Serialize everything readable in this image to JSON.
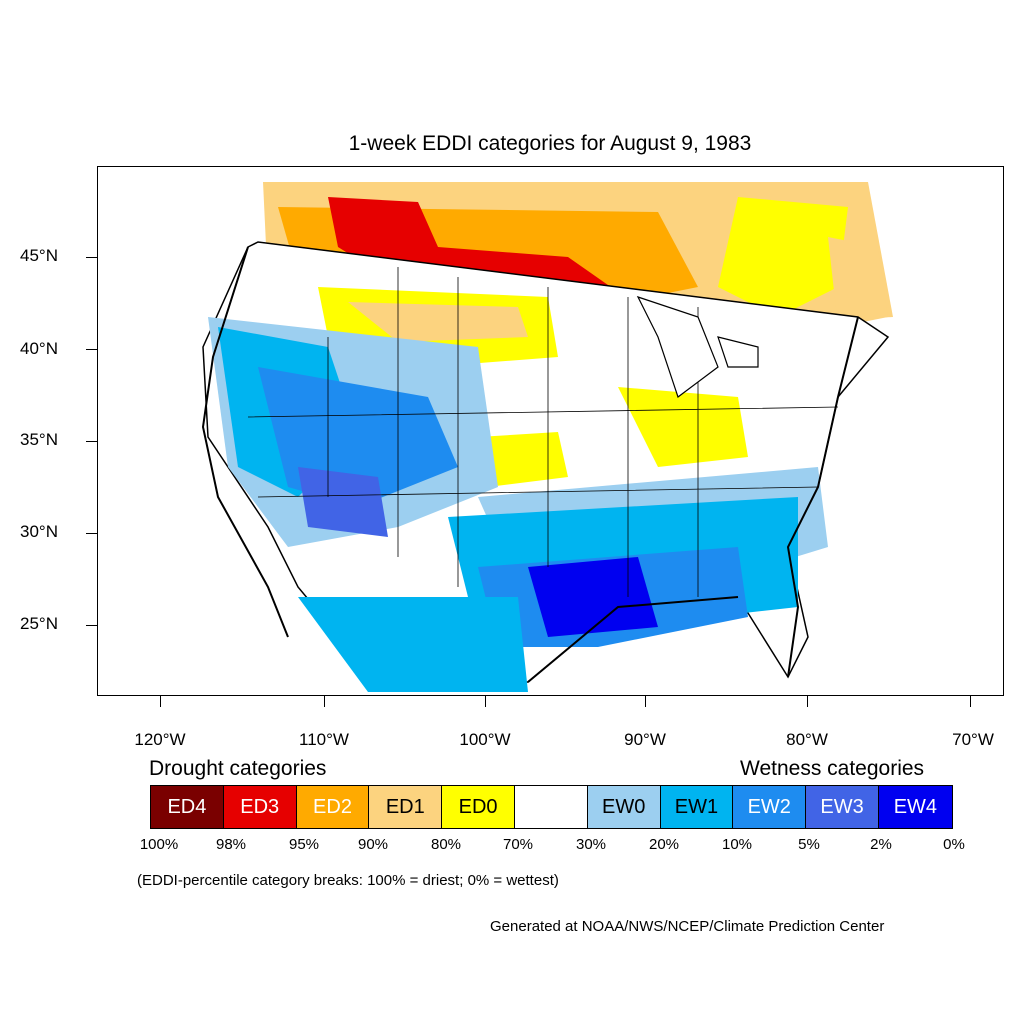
{
  "title": "1-week EDDI categories for August 9, 1983",
  "axes": {
    "lat_labels": [
      "45°N",
      "40°N",
      "35°N",
      "30°N",
      "25°N"
    ],
    "lon_labels": [
      "120°W",
      "110°W",
      "100°W",
      "90°W",
      "80°W",
      "70°W"
    ]
  },
  "legend": {
    "drought_heading": "Drought categories",
    "wetness_heading": "Wetness categories",
    "categories": [
      {
        "label": "ED4",
        "color": "#7a0000",
        "text_color": "#ffffff"
      },
      {
        "label": "ED3",
        "color": "#e60000",
        "text_color": "#ffffff"
      },
      {
        "label": "ED2",
        "color": "#ffaa00",
        "text_color": "#ffffff"
      },
      {
        "label": "ED1",
        "color": "#fcd37f",
        "text_color": "#000000"
      },
      {
        "label": "ED0",
        "color": "#ffff00",
        "text_color": "#000000"
      },
      {
        "label": "",
        "color": "#ffffff",
        "text_color": "#000000"
      },
      {
        "label": "EW0",
        "color": "#9ccff0",
        "text_color": "#000000"
      },
      {
        "label": "EW1",
        "color": "#00b4f0",
        "text_color": "#000000"
      },
      {
        "label": "EW2",
        "color": "#1e8cf0",
        "text_color": "#ffffff"
      },
      {
        "label": "EW3",
        "color": "#4164e6",
        "text_color": "#ffffff"
      },
      {
        "label": "EW4",
        "color": "#0000f0",
        "text_color": "#ffffff"
      }
    ],
    "breaks": [
      "100%",
      "98%",
      "95%",
      "90%",
      "80%",
      "70%",
      "30%",
      "20%",
      "10%",
      "5%",
      "2%",
      "0%"
    ],
    "note": "(EDDI-percentile category breaks: 100% = driest; 0% = wettest)"
  },
  "credit": "Generated at NOAA/NWS/NCEP/Climate Prediction Center"
}
